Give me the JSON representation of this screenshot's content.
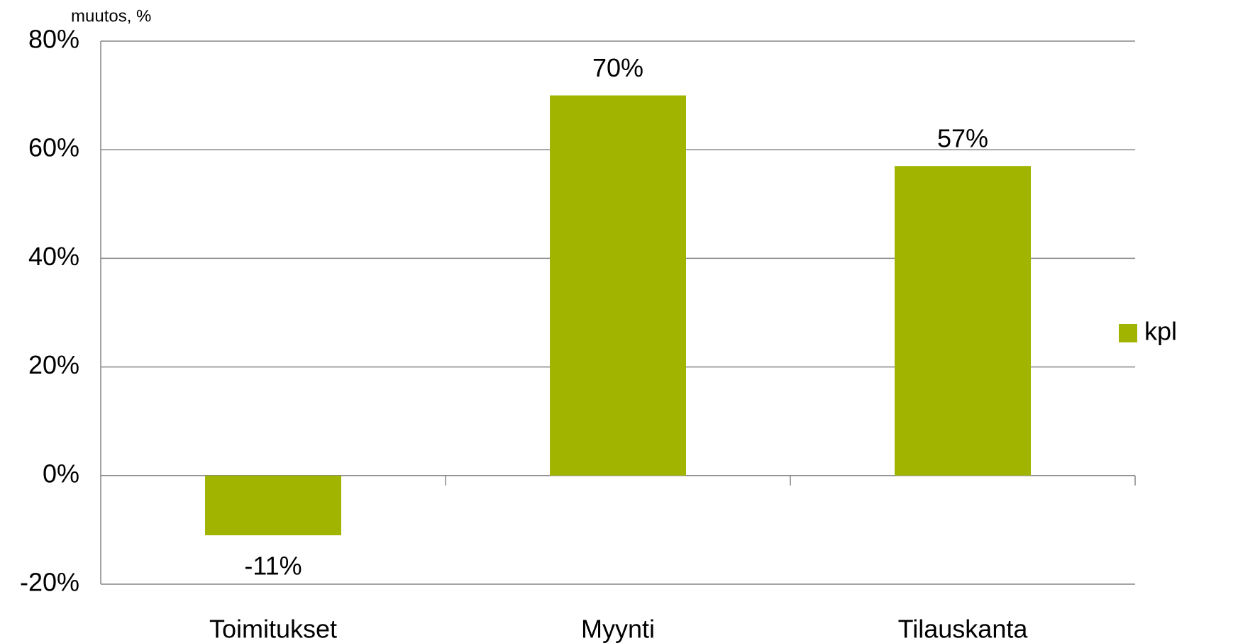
{
  "chart_data": {
    "type": "bar",
    "y_axis_label": "muutos, %",
    "categories": [
      "Toimitukset",
      "Myynti",
      "Tilauskanta"
    ],
    "series": [
      {
        "name": "kpl",
        "color": "#a0b400",
        "values": [
          -11,
          70,
          57
        ],
        "value_labels": [
          "-11%",
          "70%",
          "57%"
        ]
      }
    ],
    "ylim": [
      -20,
      80
    ],
    "yticks": [
      {
        "value": -20,
        "label": "-20%"
      },
      {
        "value": 0,
        "label": "0%"
      },
      {
        "value": 20,
        "label": "20%"
      },
      {
        "value": 40,
        "label": "40%"
      },
      {
        "value": 60,
        "label": "60%"
      },
      {
        "value": 80,
        "label": "80%"
      }
    ],
    "grid": true,
    "legend": "right"
  }
}
